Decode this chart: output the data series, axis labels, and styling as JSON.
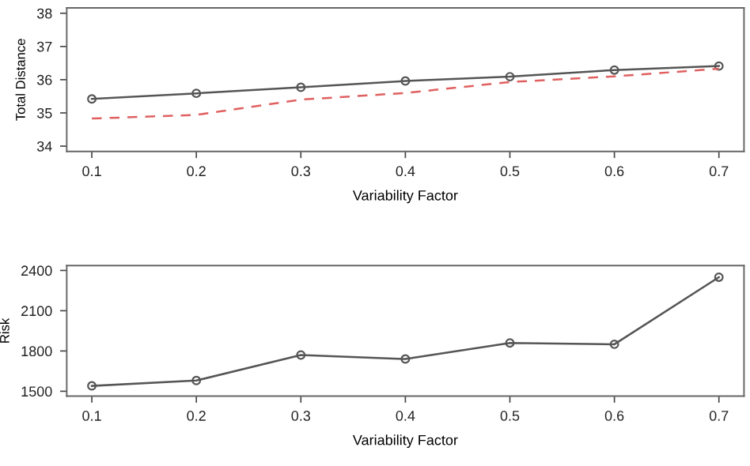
{
  "chart_data": [
    {
      "type": "line",
      "xlabel": "Variability Factor",
      "ylabel": "Total Distance",
      "x": [
        0.1,
        0.2,
        0.3,
        0.4,
        0.5,
        0.6,
        0.7
      ],
      "xlim": [
        0.076,
        0.724
      ],
      "xticks": [
        0.1,
        0.2,
        0.3,
        0.4,
        0.5,
        0.6,
        0.7
      ],
      "ylim": [
        33.84,
        38.16
      ],
      "yticks": [
        34,
        35,
        36,
        37,
        38
      ],
      "grid": false,
      "legend": false,
      "series": [
        {
          "color": "#555555",
          "marker": "circle",
          "line_style": "solid",
          "values": [
            35.42,
            35.59,
            35.77,
            35.96,
            36.09,
            36.29,
            36.41
          ]
        },
        {
          "color": "#e06060",
          "marker": "none",
          "line_style": "dashed",
          "values": [
            34.83,
            34.94,
            35.4,
            35.6,
            35.93,
            36.1,
            36.33
          ]
        }
      ]
    },
    {
      "type": "line",
      "xlabel": "Variability Factor",
      "ylabel": "Risk",
      "x": [
        0.1,
        0.2,
        0.3,
        0.4,
        0.5,
        0.6,
        0.7
      ],
      "xlim": [
        0.076,
        0.724
      ],
      "xticks": [
        0.1,
        0.2,
        0.3,
        0.4,
        0.5,
        0.6,
        0.7
      ],
      "ylim": [
        1464,
        2436
      ],
      "yticks": [
        1500,
        1800,
        2100,
        2400
      ],
      "grid": false,
      "legend": false,
      "series": [
        {
          "color": "#555555",
          "marker": "circle",
          "line_style": "solid",
          "values": [
            1540,
            1580,
            1770,
            1740,
            1860,
            1850,
            2350
          ]
        }
      ]
    }
  ]
}
